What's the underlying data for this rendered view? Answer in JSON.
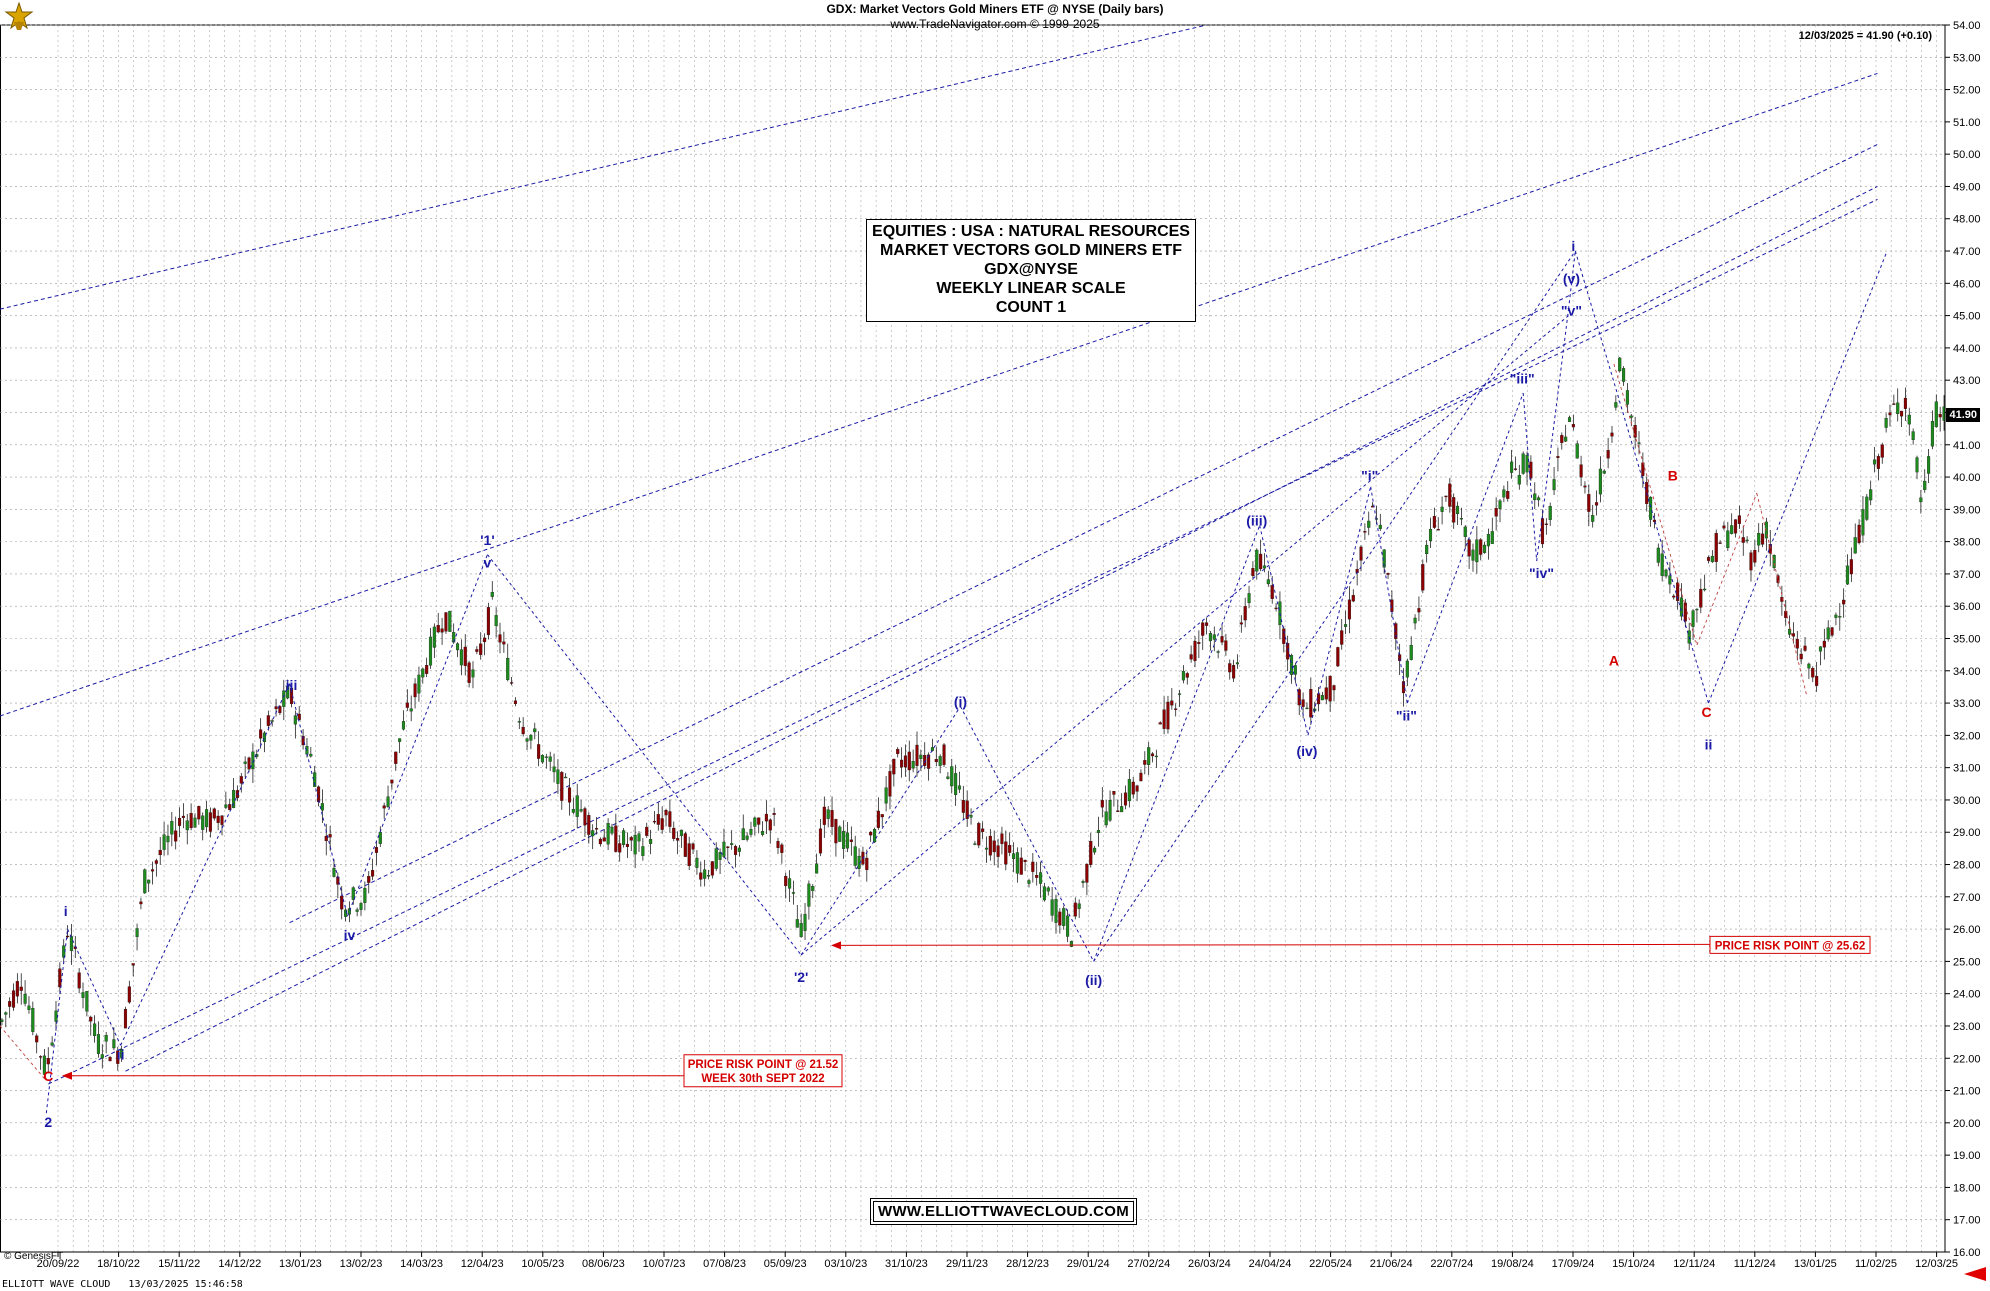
{
  "header": {
    "title": "GDX:  Market Vectors Gold Miners ETF @ NYSE  (Daily bars)",
    "copyright": "www.TradeNavigator.com © 1999-2025",
    "last_quote": "12/03/2025 = 41.90 (+0.10)",
    "last_price": "41.90"
  },
  "info_box": {
    "lines": [
      "EQUITIES : USA : NATURAL RESOURCES",
      "MARKET VECTORS GOLD MINERS ETF",
      "GDX@NYSE",
      "WEEKLY LINEAR SCALE",
      "COUNT 1"
    ]
  },
  "website": "WWW.ELLIOTTWAVECLOUD.COM",
  "genesis": "© GenesisFT",
  "footer": "ELLIOTT WAVE CLOUD   13/03/2025 15:46:58",
  "colors": {
    "wave_blue": "#1a1aa6",
    "risk_red": "#d40000",
    "up_green": "#1d8a1d",
    "down_red": "#8b0000",
    "grid": "#9a9a9a"
  },
  "chart_data": {
    "type": "candlestick",
    "ylim": [
      16,
      54
    ],
    "y_ticks": [
      "16.00",
      "17.00",
      "18.00",
      "19.00",
      "20.00",
      "21.00",
      "22.00",
      "23.00",
      "24.00",
      "25.00",
      "26.00",
      "27.00",
      "28.00",
      "29.00",
      "30.00",
      "31.00",
      "32.00",
      "33.00",
      "34.00",
      "35.00",
      "36.00",
      "37.00",
      "38.00",
      "39.00",
      "40.00",
      "41.00",
      "42.00",
      "43.00",
      "44.00",
      "45.00",
      "46.00",
      "47.00",
      "48.00",
      "49.00",
      "50.00",
      "51.00",
      "52.00",
      "53.00",
      "54.00"
    ],
    "x_ticks": [
      "20/09/22",
      "18/10/22",
      "15/11/22",
      "14/12/22",
      "13/01/23",
      "13/02/23",
      "14/03/23",
      "12/04/23",
      "10/05/23",
      "08/06/23",
      "10/07/23",
      "07/08/23",
      "05/09/23",
      "03/10/23",
      "31/10/23",
      "29/11/23",
      "28/12/23",
      "29/01/24",
      "27/02/24",
      "26/03/24",
      "24/04/24",
      "22/05/24",
      "21/06/24",
      "22/07/24",
      "19/08/24",
      "17/09/24",
      "15/10/24",
      "12/11/24",
      "11/12/24",
      "13/01/25",
      "11/02/25",
      "12/03/25"
    ],
    "price_path": [
      [
        0,
        23.0
      ],
      [
        22,
        24.5
      ],
      [
        48,
        21.5
      ],
      [
        70,
        26.0
      ],
      [
        100,
        22.5
      ],
      [
        125,
        22.2
      ],
      [
        150,
        27.5
      ],
      [
        190,
        29.5
      ],
      [
        220,
        29.3
      ],
      [
        245,
        30.2
      ],
      [
        270,
        31.8
      ],
      [
        300,
        33.3
      ],
      [
        325,
        31.0
      ],
      [
        355,
        26.8
      ],
      [
        380,
        27.0
      ],
      [
        415,
        32.0
      ],
      [
        460,
        35.8
      ],
      [
        490,
        33.8
      ],
      [
        510,
        36.0
      ],
      [
        540,
        32.5
      ],
      [
        580,
        30.5
      ],
      [
        620,
        29.0
      ],
      [
        660,
        28.5
      ],
      [
        690,
        29.5
      ],
      [
        700,
        28.9
      ],
      [
        730,
        27.8
      ],
      [
        760,
        28.5
      ],
      [
        800,
        29.5
      ],
      [
        830,
        25.8
      ],
      [
        855,
        29.5
      ],
      [
        895,
        28.0
      ],
      [
        930,
        31.2
      ],
      [
        975,
        31.5
      ],
      [
        1010,
        29.0
      ],
      [
        1040,
        28.5
      ],
      [
        1075,
        27.5
      ],
      [
        1110,
        25.9
      ],
      [
        1140,
        29.5
      ],
      [
        1180,
        30.5
      ],
      [
        1215,
        33.0
      ],
      [
        1250,
        35.5
      ],
      [
        1280,
        34.0
      ],
      [
        1300,
        37.5
      ],
      [
        1320,
        36.5
      ],
      [
        1350,
        32.8
      ],
      [
        1380,
        33.5
      ],
      [
        1410,
        37.5
      ],
      [
        1425,
        39.2
      ],
      [
        1455,
        33.5
      ],
      [
        1480,
        38.0
      ],
      [
        1500,
        39.5
      ],
      [
        1525,
        37.5
      ],
      [
        1545,
        38.2
      ],
      [
        1565,
        40.0
      ],
      [
        1585,
        40.5
      ],
      [
        1600,
        38.0
      ],
      [
        1625,
        42.0
      ],
      [
        1650,
        38.8
      ],
      [
        1667,
        41.0
      ],
      [
        1678,
        43.5
      ],
      [
        1700,
        40.5
      ],
      [
        1720,
        37.5
      ],
      [
        1738,
        36.5
      ],
      [
        1750,
        35.3
      ],
      [
        1780,
        38.0
      ],
      [
        1800,
        38.5
      ],
      [
        1815,
        37.5
      ],
      [
        1830,
        38.5
      ],
      [
        1850,
        35.5
      ],
      [
        1880,
        33.8
      ],
      [
        1900,
        35.5
      ],
      [
        1925,
        38.0
      ],
      [
        1945,
        40.5
      ],
      [
        1960,
        42.0
      ],
      [
        1975,
        42.5
      ],
      [
        1992,
        39.0
      ],
      [
        2005,
        42.0
      ],
      [
        2015,
        41.9
      ]
    ],
    "wave_labels": [
      {
        "label": "2",
        "value": 20.3,
        "color": "blue"
      },
      {
        "label": "C",
        "value": 21.3,
        "color": "red"
      },
      {
        "label": "i",
        "value": 26.4,
        "color": "blue"
      },
      {
        "label": "ii",
        "value": 22.4,
        "color": "blue"
      },
      {
        "label": "iii",
        "value": 33.4,
        "color": "blue"
      },
      {
        "label": "iv",
        "value": 26.1,
        "color": "blue"
      },
      {
        "label": "'1'",
        "value": 37.9,
        "color": "blue"
      },
      {
        "label": "v",
        "value": 37.2,
        "color": "blue"
      },
      {
        "label": "'2'",
        "value": 24.8,
        "color": "blue"
      },
      {
        "label": "(i)",
        "value": 32.9,
        "color": "blue"
      },
      {
        "label": "(ii)",
        "value": 24.7,
        "color": "blue"
      },
      {
        "label": "(iii)",
        "value": 38.5,
        "color": "blue"
      },
      {
        "label": "(iv)",
        "value": 31.8,
        "color": "blue"
      },
      {
        "label": "\"i\"",
        "value": 39.9,
        "color": "blue"
      },
      {
        "label": "\"ii\"",
        "value": 32.9,
        "color": "blue"
      },
      {
        "label": "\"iii\"",
        "value": 42.9,
        "color": "blue"
      },
      {
        "label": "\"iv\"",
        "value": 37.3,
        "color": "blue"
      },
      {
        "label": "\"v\"",
        "value": 45.0,
        "color": "blue"
      },
      {
        "label": "(v)",
        "value": 46.0,
        "color": "blue"
      },
      {
        "label": "i",
        "value": 47.0,
        "color": "blue"
      },
      {
        "label": "A",
        "value": 34.6,
        "color": "red"
      },
      {
        "label": "B",
        "value": 39.9,
        "color": "red"
      },
      {
        "label": "C",
        "value": 33.0,
        "color": "red"
      },
      {
        "label": "ii",
        "value": 32.0,
        "color": "blue"
      }
    ],
    "annotations": [
      {
        "lines": [
          "PRICE RISK POINT @ 21.52",
          "WEEK 30th SEPT 2022"
        ],
        "value": 21.52
      },
      {
        "lines": [
          "PRICE RISK POINT @ 25.62"
        ],
        "value": 25.62
      }
    ]
  }
}
